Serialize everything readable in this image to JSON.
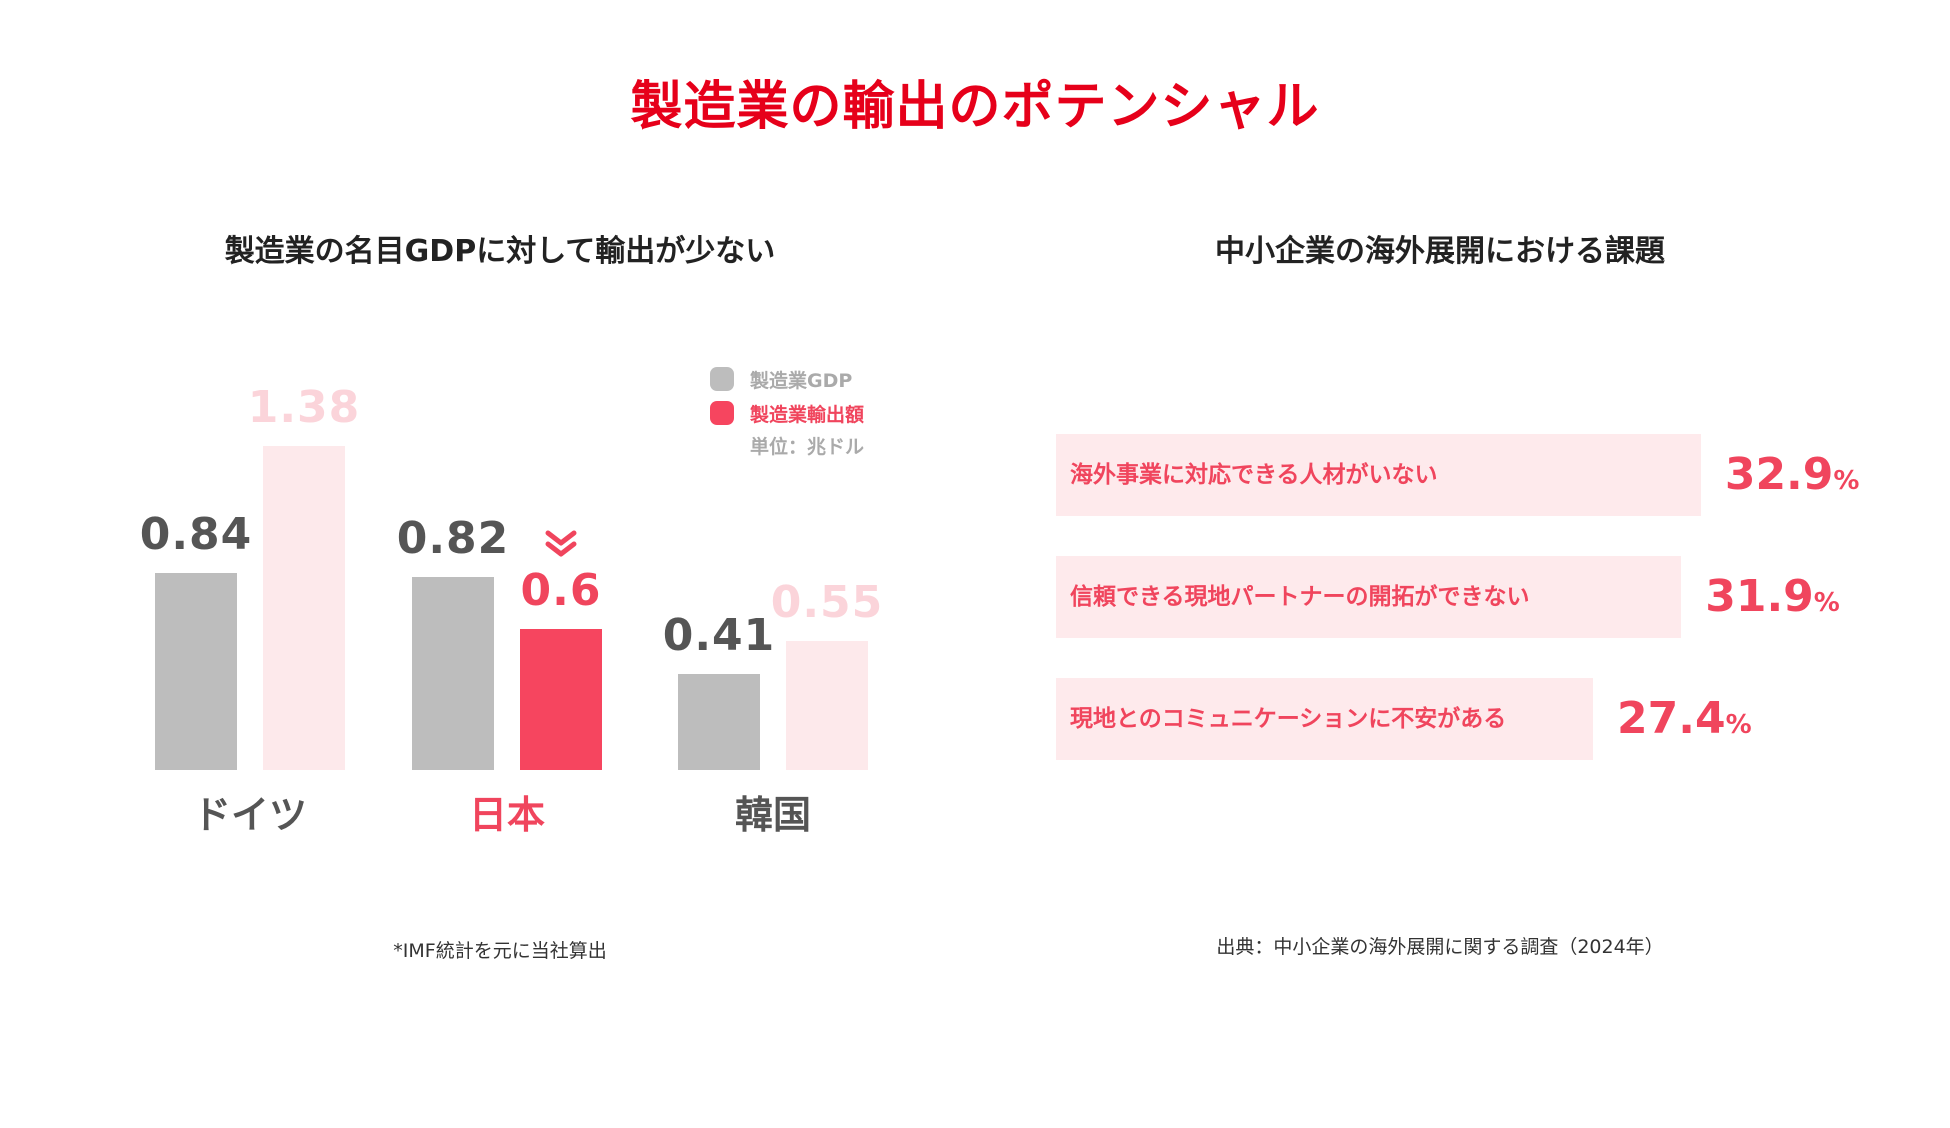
{
  "title": "製造業の輸出のポテンシャル",
  "left_panel": {
    "subtitle": "製造業の名目GDPに対して輸出が少ない",
    "note": "*IMF統計を元に当社算出"
  },
  "right_panel": {
    "subtitle": "中小企業の海外展開における課題",
    "source": "出典：中小企業の海外展開に関する調査（2024年）"
  },
  "chart_data": [
    {
      "type": "bar",
      "title": "製造業の名目GDPに対して輸出が少ない",
      "categories": [
        "ドイツ",
        "日本",
        "韓国"
      ],
      "series": [
        {
          "name": "製造業GDP",
          "values": [
            0.84,
            0.82,
            0.41
          ]
        },
        {
          "name": "製造業輸出額",
          "values": [
            1.38,
            0.6,
            0.55
          ]
        }
      ],
      "value_labels": {
        "gdp": [
          "0.84",
          "0.82",
          "0.41"
        ],
        "export": [
          "1.38",
          "0.6",
          "0.55"
        ]
      },
      "unit": "単位：兆ドル",
      "legend_position": "top-right",
      "highlight_category": "日本",
      "colors": {
        "gdp": "#bdbdbd",
        "export": "#fde9eb",
        "export_highlight": "#f6455f",
        "gdp_label": "#555555",
        "export_label": "#fbd4da",
        "highlight_label": "#f0455d",
        "category_label": "#555555",
        "highlight_category_label": "#f0455d",
        "legend_gdp_text": "#aaaaaa",
        "legend_export_text": "#f0455d"
      },
      "ylim": [
        0,
        1.6
      ]
    },
    {
      "type": "bar",
      "orientation": "horizontal",
      "title": "中小企業の海外展開における課題",
      "categories": [
        "海外事業に対応できる人材がいない",
        "信頼できる現地パートナーの開拓ができない",
        "現地とのコミュニケーションに不安がある"
      ],
      "values": [
        32.9,
        31.9,
        27.4
      ],
      "value_labels": [
        "32.9",
        "31.9",
        "27.4"
      ],
      "unit": "%",
      "xlim": [
        0,
        40
      ],
      "colors": {
        "bar": "#feeaec",
        "text": "#f0455d"
      }
    }
  ]
}
